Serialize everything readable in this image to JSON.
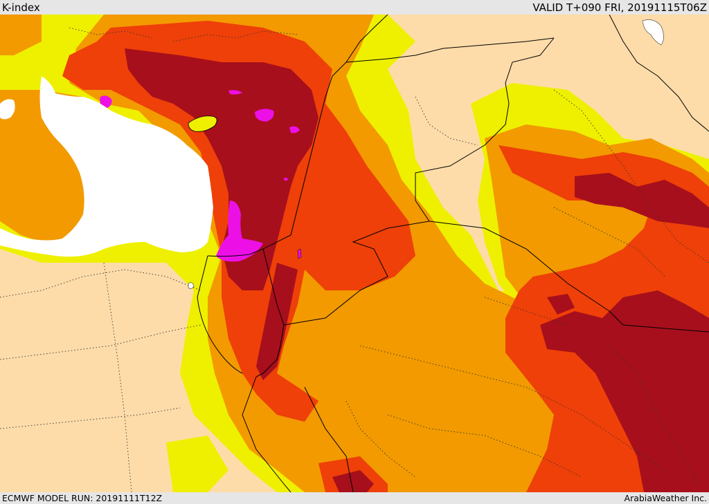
{
  "header": {
    "title": "K-index",
    "valid": "VALID T+090 FRI, 20191115T06Z"
  },
  "footer": {
    "model_run": "ECMWF MODEL RUN: 20191111T12Z",
    "credit": "ArabiaWeather Inc."
  },
  "palette": {
    "land_low": "#fddca9",
    "k_level_1": "#eef000",
    "k_level_2": "#f29a00",
    "k_level_3": "#ee4008",
    "k_level_4": "#a70f1c",
    "k_level_5": "#ec10e6",
    "sea": "#ffffff"
  }
}
